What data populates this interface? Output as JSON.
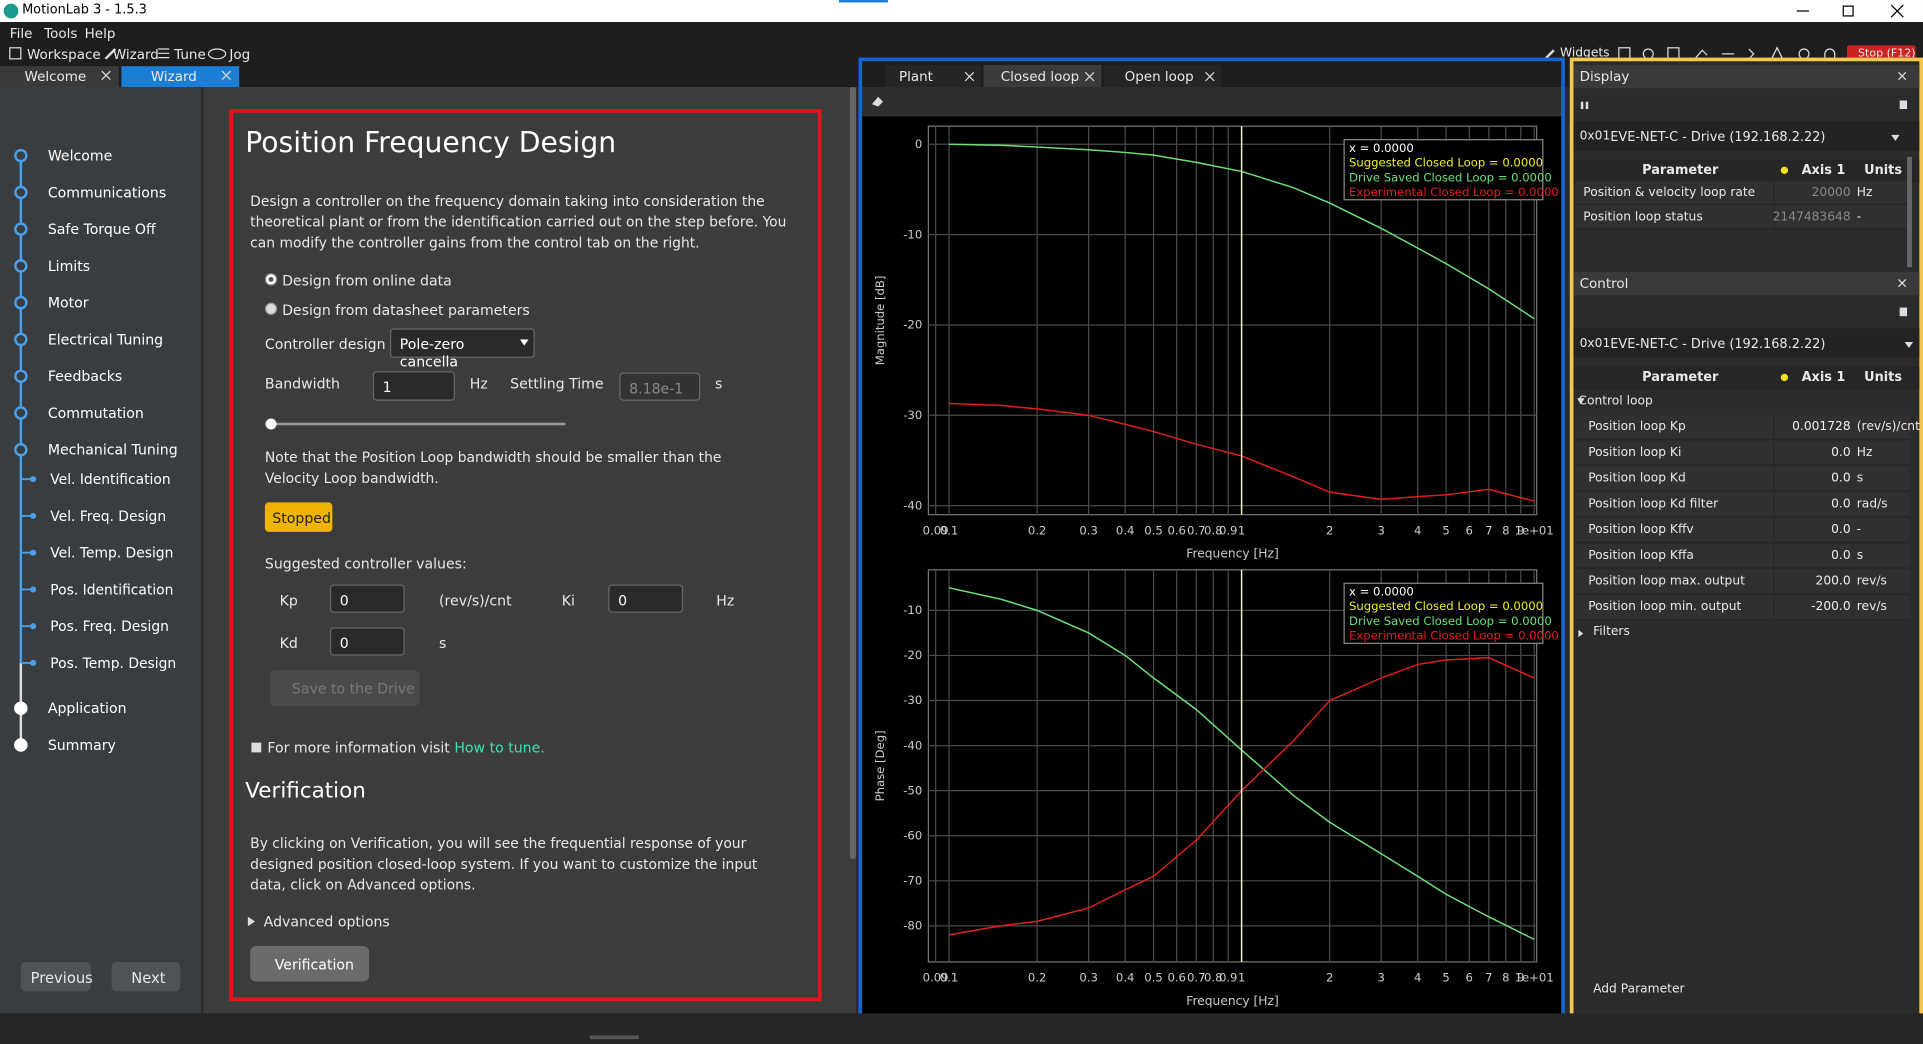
{
  "window": {
    "title": "MotionLab 3 - 1.5.3"
  },
  "menu": [
    "File",
    "Tools",
    "Help"
  ],
  "toolbar": [
    "Workspace",
    "Wizard",
    "Tune",
    "Jog"
  ],
  "toolbar_right": {
    "widgets": "Widgets",
    "stop": "Stop (F12)"
  },
  "tabs": [
    "Welcome",
    "Wizard"
  ],
  "steps": [
    {
      "label": "Welcome",
      "sub": false
    },
    {
      "label": "Communications",
      "sub": false
    },
    {
      "label": "Safe Torque Off",
      "sub": false
    },
    {
      "label": "Limits",
      "sub": false
    },
    {
      "label": "Motor",
      "sub": false
    },
    {
      "label": "Electrical Tuning",
      "sub": false
    },
    {
      "label": "Feedbacks",
      "sub": false
    },
    {
      "label": "Commutation",
      "sub": false
    },
    {
      "label": "Mechanical Tuning",
      "sub": false
    },
    {
      "label": "Vel. Identification",
      "sub": true
    },
    {
      "label": "Vel. Freq. Design",
      "sub": true
    },
    {
      "label": "Vel. Temp. Design",
      "sub": true
    },
    {
      "label": "Pos. Identification",
      "sub": true
    },
    {
      "label": "Pos. Freq. Design",
      "sub": true
    },
    {
      "label": "Pos. Temp. Design",
      "sub": true
    },
    {
      "label": "Application",
      "sub": false
    },
    {
      "label": "Summary",
      "sub": false
    }
  ],
  "nav": {
    "previous": "Previous",
    "next": "Next"
  },
  "design": {
    "title": "Position Frequency Design",
    "description": "Design a controller on the frequency domain taking into consideration the theoretical plant or from the identification carried out on the step before. You can modify the controller gains from the control tab on the right.",
    "options": [
      "Design from online data",
      "Design from datasheet parameters"
    ],
    "controller_label": "Controller design",
    "controller_value": "Pole-zero cancella",
    "bandwidth_label": "Bandwidth",
    "bandwidth_value": "1",
    "bandwidth_unit": "Hz",
    "settling_label": "Settling Time",
    "settling_value": "8.18e-1",
    "settling_unit": "s",
    "note": "Note that the Position Loop bandwidth should be smaller than the Velocity Loop bandwidth.",
    "status": "Stopped",
    "suggested_label": "Suggested controller values:",
    "kp": {
      "label": "Kp",
      "value": "0",
      "unit": "(rev/s)/cnt"
    },
    "ki": {
      "label": "Ki",
      "value": "0",
      "unit": "Hz"
    },
    "kd": {
      "label": "Kd",
      "value": "0",
      "unit": "s"
    },
    "save": "Save to the Drive",
    "info_text": "For more information visit",
    "info_link": "How to tune.",
    "verification_title": "Verification",
    "verification_text": "By clicking on Verification, you will see the frequential response of your designed position closed-loop system. If you want to customize the input data, click on Advanced options.",
    "advanced": "Advanced options",
    "verify_button": "Verification"
  },
  "plot_tabs": [
    "Plant",
    "Closed loop",
    "Open loop"
  ],
  "chart_data": [
    {
      "type": "line",
      "x_label": "Frequency [Hz]",
      "y_label": "Magnitude [dB]",
      "xlog": true,
      "grid": true,
      "cursor_x": 1,
      "xlim": [
        0.085,
        10.2
      ],
      "ylim": [
        -41,
        2
      ],
      "xticks": [
        0.09,
        0.1,
        0.2,
        0.3,
        0.4,
        0.5,
        0.6,
        0.7,
        0.8,
        0.9,
        1,
        2,
        3,
        4,
        5,
        6,
        7,
        8,
        9,
        {
          "value": 10,
          "label": "1e+01"
        }
      ],
      "yticks": [
        0,
        -10,
        -20,
        -30,
        -40
      ],
      "legend_title": "x = 0.0000",
      "x": [
        0.1,
        0.15,
        0.2,
        0.3,
        0.4,
        0.5,
        0.7,
        1,
        1.5,
        2,
        3,
        4,
        5,
        7,
        10
      ],
      "series": [
        {
          "name": "Suggested Closed Loop = 0.0000",
          "color": "#f2f21a",
          "values": [
            null,
            null,
            null,
            null,
            null,
            null,
            null,
            null,
            null,
            null,
            null,
            null,
            null,
            null,
            null
          ]
        },
        {
          "name": "Drive Saved Closed Loop = 0.0000",
          "color": "#6ee07a",
          "values": [
            0,
            -0.1,
            -0.3,
            -0.6,
            -0.9,
            -1.2,
            -2,
            -3,
            -4.8,
            -6.5,
            -9.3,
            -11.5,
            -13.2,
            -16,
            -19.3
          ]
        },
        {
          "name": "Experimental Closed Loop = 0.0000",
          "color": "#e0201c",
          "values": [
            -28.7,
            -28.9,
            -29.3,
            -30,
            -31,
            -31.8,
            -33.2,
            -34.5,
            -36.8,
            -38.5,
            -39.3,
            -39,
            -38.8,
            -38.2,
            -39.5
          ]
        }
      ]
    },
    {
      "type": "line",
      "x_label": "Frequency [Hz]",
      "y_label": "Phase [Deg]",
      "xlog": true,
      "grid": true,
      "cursor_x": 1,
      "xlim": [
        0.085,
        10.2
      ],
      "ylim": [
        -88,
        -1
      ],
      "xticks": [
        0.09,
        0.1,
        0.2,
        0.3,
        0.4,
        0.5,
        0.6,
        0.7,
        0.8,
        0.9,
        1,
        2,
        3,
        4,
        5,
        6,
        7,
        8,
        9,
        {
          "value": 10,
          "label": "1e+01"
        }
      ],
      "yticks": [
        -10,
        -20,
        -30,
        -40,
        -50,
        -60,
        -70,
        -80
      ],
      "legend_title": "x = 0.0000",
      "x": [
        0.1,
        0.15,
        0.2,
        0.3,
        0.4,
        0.5,
        0.7,
        1,
        1.5,
        2,
        3,
        4,
        5,
        7,
        10
      ],
      "series": [
        {
          "name": "Suggested Closed Loop = 0.0000",
          "color": "#f2f21a",
          "values": [
            null,
            null,
            null,
            null,
            null,
            null,
            null,
            null,
            null,
            null,
            null,
            null,
            null,
            null,
            null
          ]
        },
        {
          "name": "Drive Saved Closed Loop = 0.0000",
          "color": "#6ee07a",
          "values": [
            -5,
            -7.5,
            -10,
            -15,
            -20,
            -25,
            -32,
            -41,
            -51,
            -57,
            -64,
            -69,
            -73,
            -78,
            -83
          ]
        },
        {
          "name": "Experimental Closed Loop = 0.0000",
          "color": "#e0201c",
          "values": [
            -82,
            -80,
            -79,
            -76,
            -72,
            -69,
            -61,
            -50,
            -39,
            -30,
            -25,
            -22,
            -21,
            -20.5,
            -25
          ]
        }
      ]
    }
  ],
  "display": {
    "title": "Display",
    "device": "0x01",
    "device_name": "EVE-NET-C - Drive (192.168.2.22)",
    "columns": [
      "Parameter",
      "Axis 1",
      "Units"
    ],
    "rows": [
      [
        "Position & velocity loop rate",
        "20000",
        "Hz"
      ],
      [
        "Position loop status",
        "2147483648",
        "-"
      ]
    ]
  },
  "control": {
    "title": "Control",
    "device": "0x01",
    "device_name": "EVE-NET-C - Drive (192.168.2.22)",
    "columns": [
      "Parameter",
      "Axis 1",
      "Units"
    ],
    "group": "Control loop",
    "rows": [
      [
        "Position loop Kp",
        "0.001728",
        "(rev/s)/cnt"
      ],
      [
        "Position loop Ki",
        "0.0",
        "Hz"
      ],
      [
        "Position loop Kd",
        "0.0",
        "s"
      ],
      [
        "Position loop Kd filter",
        "0.0",
        "rad/s"
      ],
      [
        "Position loop Kffv",
        "0.0",
        "-"
      ],
      [
        "Position loop Kffa",
        "0.0",
        "s"
      ],
      [
        "Position loop max. output",
        "200.0",
        "rev/s"
      ],
      [
        "Position loop min. output",
        "-200.0",
        "rev/s"
      ]
    ],
    "filters": "Filters",
    "add": "Add Parameter"
  }
}
